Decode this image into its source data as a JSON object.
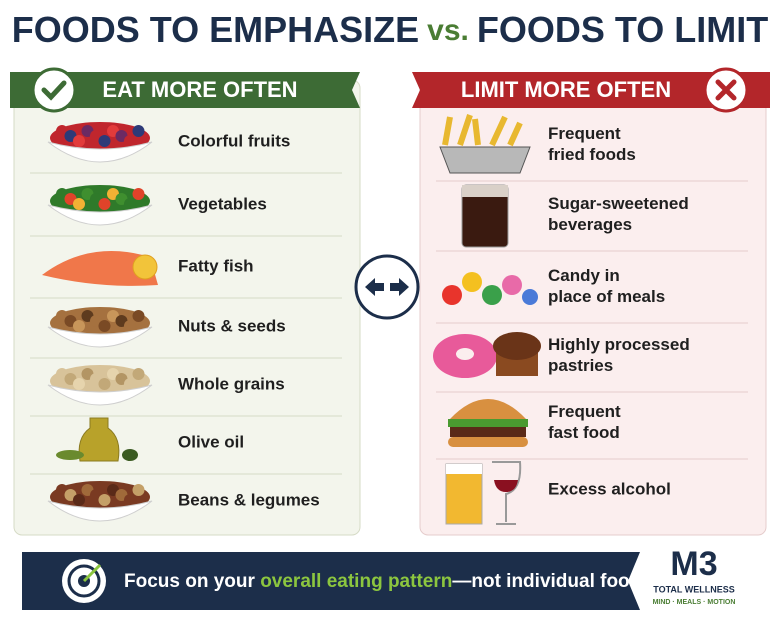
{
  "title": {
    "left": "FOODS TO EMPHASIZE",
    "vs": "vs.",
    "right": "FOODS TO LIMIT"
  },
  "emphasize": {
    "header": "EAT MORE OFTEN",
    "items": [
      "Colorful fruits",
      "Vegetables",
      "Fatty fish",
      "Nuts & seeds",
      "Whole grains",
      "Olive oil",
      "Beans & legumes"
    ]
  },
  "limit": {
    "header": "LIMIT MORE OFTEN",
    "items": [
      [
        "Frequent",
        "fried foods"
      ],
      [
        "Sugar-sweetened",
        "beverages"
      ],
      [
        "Candy in",
        "place of meals"
      ],
      [
        "Highly processed",
        "pastries"
      ],
      [
        "Frequent",
        "fast food"
      ],
      [
        "Excess alcohol"
      ]
    ]
  },
  "footer": {
    "before": "Focus on your ",
    "highlight": "overall eating pattern",
    "after": "—not individual foods."
  },
  "logo": {
    "mark": "M3",
    "name": "TOTAL WELLNESS",
    "tagline": "MIND · MEALS · MOTION"
  }
}
